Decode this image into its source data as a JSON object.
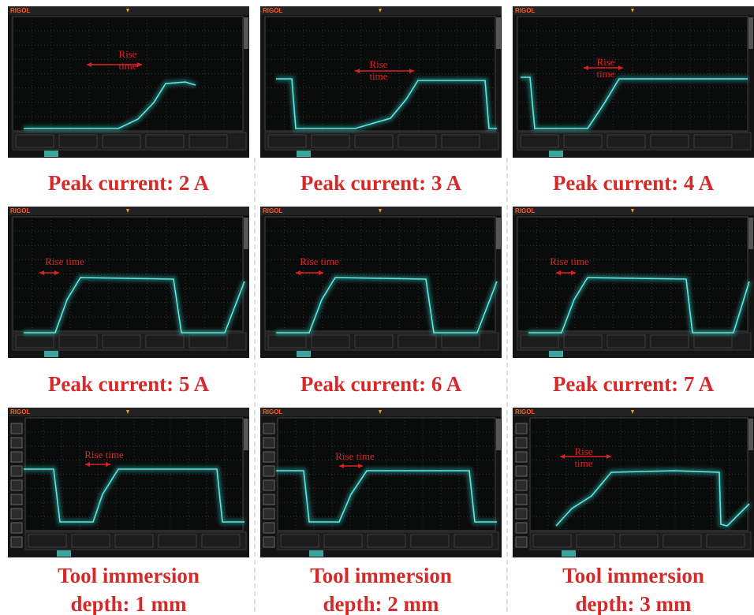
{
  "panels": [
    {
      "brand": "RIGOL",
      "annotation": [
        "Rise",
        "time"
      ],
      "caption": [
        "Peak current: 2 A"
      ]
    },
    {
      "brand": "RIGOL",
      "annotation": [
        "Rise",
        "time"
      ],
      "caption": [
        "Peak current: 3 A"
      ]
    },
    {
      "brand": "RIGOL",
      "annotation": [
        "Rise",
        "time"
      ],
      "caption": [
        "Peak current: 4 A"
      ]
    },
    {
      "brand": "RIGOL",
      "annotation": [
        "Rise time"
      ],
      "caption": [
        "Peak current: 5 A"
      ]
    },
    {
      "brand": "RIGOL",
      "annotation": [
        "Rise time"
      ],
      "caption": [
        "Peak current: 6 A"
      ]
    },
    {
      "brand": "RIGOL",
      "annotation": [
        "Rise time"
      ],
      "caption": [
        "Peak current: 7 A"
      ]
    },
    {
      "brand": "RIGOL",
      "annotation": [
        "Rise time"
      ],
      "caption": [
        "Tool immersion",
        "depth: 1 mm"
      ]
    },
    {
      "brand": "RIGOL",
      "annotation": [
        "Rise time"
      ],
      "caption": [
        "Tool immersion",
        "depth: 2 mm"
      ]
    },
    {
      "brand": "RIGOL",
      "annotation": [
        "Rise",
        "time"
      ],
      "caption": [
        "Tool immersion",
        "depth: 3 mm"
      ]
    }
  ]
}
